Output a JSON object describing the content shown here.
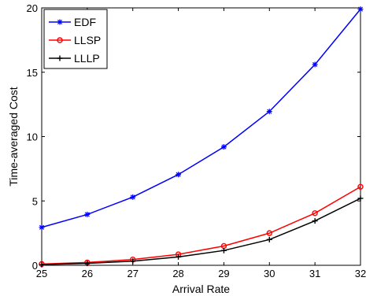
{
  "chart_data": {
    "type": "line",
    "title": "",
    "xlabel": "Arrival Rate",
    "ylabel": "Time-averaged Cost",
    "x": [
      25,
      26,
      27,
      28,
      29,
      30,
      31,
      32
    ],
    "xlim": [
      25,
      32
    ],
    "ylim": [
      0,
      20
    ],
    "xticks": [
      "25",
      "26",
      "27",
      "28",
      "29",
      "30",
      "31",
      "32"
    ],
    "yticks": [
      "0",
      "5",
      "10",
      "15",
      "20"
    ],
    "grid": false,
    "legend_position": "top-left",
    "series": [
      {
        "name": "EDF",
        "color": "#0000ff",
        "marker": "asterisk",
        "values": [
          2.95,
          3.95,
          5.3,
          7.05,
          9.2,
          11.95,
          15.6,
          19.9
        ]
      },
      {
        "name": "LLSP",
        "color": "#ff0000",
        "marker": "circle",
        "values": [
          0.1,
          0.22,
          0.45,
          0.85,
          1.5,
          2.5,
          4.05,
          6.1
        ]
      },
      {
        "name": "LLLP",
        "color": "#000000",
        "marker": "plus",
        "values": [
          0.05,
          0.15,
          0.32,
          0.65,
          1.15,
          2.0,
          3.45,
          5.2
        ]
      }
    ]
  }
}
